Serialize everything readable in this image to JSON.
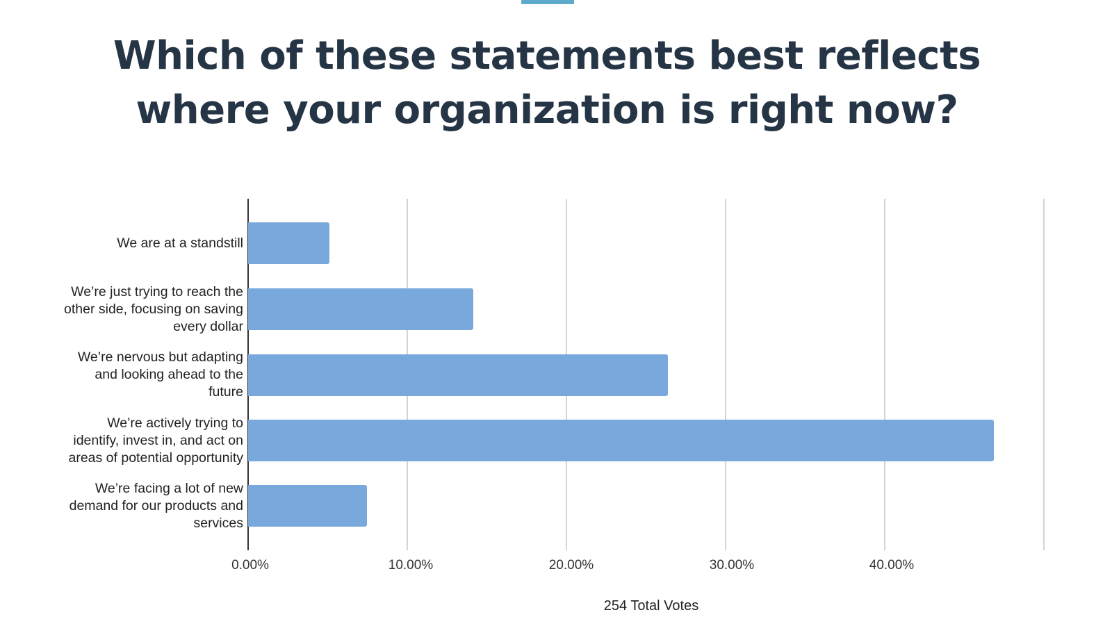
{
  "header": {
    "accent_color": "#5eaacb",
    "title_line_1": "Which of these statements best reflects",
    "title_line_2": "where your organization is right now?",
    "title_color": "#263545"
  },
  "chart": {
    "bar_color": "#79a9dc",
    "xlabel": "254 Total Votes",
    "ticks": [
      "0.00%",
      "10.00%",
      "20.00%",
      "30.00%",
      "40.00%"
    ]
  },
  "chart_data": {
    "type": "bar",
    "orientation": "horizontal",
    "title": "Which of these statements best reflects where your organization is right now?",
    "categories": [
      "We are at a standstill",
      "We’re just trying to reach the other side, focusing on saving every dollar",
      "We’re nervous but adapting and looking ahead to the future",
      "We’re actively trying to identify, invest in, and act on areas of potential opportunity",
      "We’re facing a lot of new demand for our products and services"
    ],
    "category_lines": [
      [
        "We are at a standstill"
      ],
      [
        "We’re just trying to reach the",
        "other side, focusing on saving",
        "every dollar"
      ],
      [
        "We’re nervous but adapting",
        "and looking ahead to the",
        "future"
      ],
      [
        "We’re actively trying to",
        "identify, invest in, and act on",
        "areas of potential opportunity"
      ],
      [
        "We’re facing a lot of new",
        "demand for our products and",
        "services"
      ]
    ],
    "values": [
      5.12,
      14.17,
      26.38,
      46.85,
      7.48
    ],
    "unit": "%",
    "xlabel": "254 Total Votes",
    "ylabel": "",
    "xlim": [
      0,
      50
    ],
    "x_ticks": [
      "0.00%",
      "10.00%",
      "20.00%",
      "30.00%",
      "40.00%"
    ],
    "grid": true,
    "legend": "none"
  }
}
